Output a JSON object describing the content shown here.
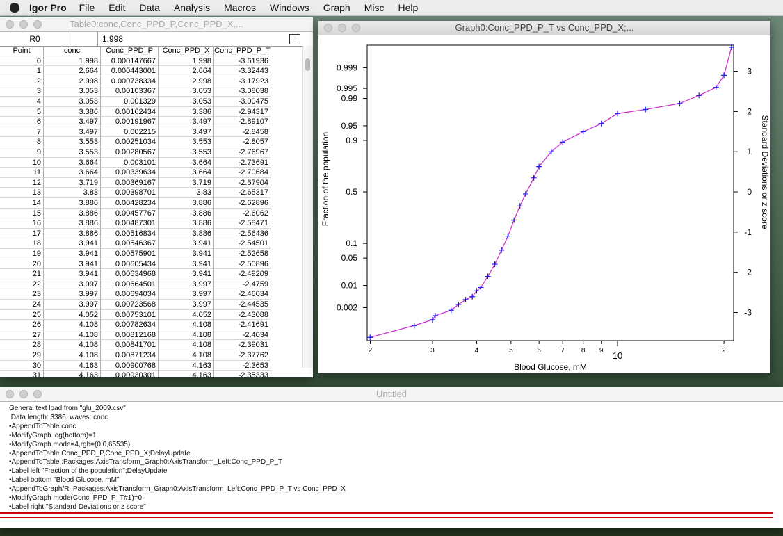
{
  "menubar": {
    "app": "Igor Pro",
    "items": [
      "File",
      "Edit",
      "Data",
      "Analysis",
      "Macros",
      "Windows",
      "Graph",
      "Misc",
      "Help"
    ]
  },
  "table_window": {
    "title": "Table0:conc,Conc_PPD_P,Conc_PPD_X,...",
    "cell_label": "R0",
    "cell_value": "1.998",
    "columns": [
      "Point",
      "conc",
      "Conc_PPD_P",
      "Conc_PPD_X",
      "Conc_PPD_P_T"
    ],
    "rows": [
      [
        "0",
        "1.998",
        "0.000147667",
        "1.998",
        "-3.61936"
      ],
      [
        "1",
        "2.664",
        "0.000443001",
        "2.664",
        "-3.32443"
      ],
      [
        "2",
        "2.998",
        "0.000738334",
        "2.998",
        "-3.17923"
      ],
      [
        "3",
        "3.053",
        "0.00103367",
        "3.053",
        "-3.08038"
      ],
      [
        "4",
        "3.053",
        "0.001329",
        "3.053",
        "-3.00475"
      ],
      [
        "5",
        "3.386",
        "0.00162434",
        "3.386",
        "-2.94317"
      ],
      [
        "6",
        "3.497",
        "0.00191967",
        "3.497",
        "-2.89107"
      ],
      [
        "7",
        "3.497",
        "0.002215",
        "3.497",
        "-2.8458"
      ],
      [
        "8",
        "3.553",
        "0.00251034",
        "3.553",
        "-2.8057"
      ],
      [
        "9",
        "3.553",
        "0.00280567",
        "3.553",
        "-2.76967"
      ],
      [
        "10",
        "3.664",
        "0.003101",
        "3.664",
        "-2.73691"
      ],
      [
        "11",
        "3.664",
        "0.00339634",
        "3.664",
        "-2.70684"
      ],
      [
        "12",
        "3.719",
        "0.00369167",
        "3.719",
        "-2.67904"
      ],
      [
        "13",
        "3.83",
        "0.00398701",
        "3.83",
        "-2.65317"
      ],
      [
        "14",
        "3.886",
        "0.00428234",
        "3.886",
        "-2.62896"
      ],
      [
        "15",
        "3.886",
        "0.00457767",
        "3.886",
        "-2.6062"
      ],
      [
        "16",
        "3.886",
        "0.00487301",
        "3.886",
        "-2.58471"
      ],
      [
        "17",
        "3.886",
        "0.00516834",
        "3.886",
        "-2.56436"
      ],
      [
        "18",
        "3.941",
        "0.00546367",
        "3.941",
        "-2.54501"
      ],
      [
        "19",
        "3.941",
        "0.00575901",
        "3.941",
        "-2.52658"
      ],
      [
        "20",
        "3.941",
        "0.00605434",
        "3.941",
        "-2.50896"
      ],
      [
        "21",
        "3.941",
        "0.00634968",
        "3.941",
        "-2.49209"
      ],
      [
        "22",
        "3.997",
        "0.00664501",
        "3.997",
        "-2.4759"
      ],
      [
        "23",
        "3.997",
        "0.00694034",
        "3.997",
        "-2.46034"
      ],
      [
        "24",
        "3.997",
        "0.00723568",
        "3.997",
        "-2.44535"
      ],
      [
        "25",
        "4.052",
        "0.00753101",
        "4.052",
        "-2.43088"
      ],
      [
        "26",
        "4.108",
        "0.00782634",
        "4.108",
        "-2.41691"
      ],
      [
        "27",
        "4.108",
        "0.00812168",
        "4.108",
        "-2.4034"
      ],
      [
        "28",
        "4.108",
        "0.00841701",
        "4.108",
        "-2.39031"
      ],
      [
        "29",
        "4.108",
        "0.00871234",
        "4.108",
        "-2.37762"
      ],
      [
        "30",
        "4.163",
        "0.00900768",
        "4.163",
        "-2.3653"
      ],
      [
        "31",
        "4.163",
        "0.00930301",
        "4.163",
        "-2.35333"
      ]
    ]
  },
  "graph_window": {
    "title": "Graph0:Conc_PPD_P_T vs Conc_PPD_X;...",
    "chart_data": {
      "type": "line",
      "x_label": "Blood Glucose, mM",
      "y_label": "Fraction of the population",
      "y2_label": "Standard Deviations or z score",
      "x_scale": "log",
      "y_scale": "probability",
      "xlim": [
        1.96,
        21.3
      ],
      "xticks": [
        2,
        3,
        4,
        5,
        6,
        7,
        8,
        9,
        10,
        {
          "value": 20,
          "label": "2"
        }
      ],
      "yticks": [
        0.002,
        0.01,
        0.05,
        0.1,
        0.5,
        0.9,
        0.95,
        0.99,
        0.995,
        0.999
      ],
      "y2lim": [
        -3.7,
        3.65
      ],
      "y2ticks": [
        -3,
        -2,
        -1,
        0,
        1,
        2,
        3
      ],
      "series": [
        {
          "axis": "y2",
          "color": "#1a1aff",
          "line_color": "#cc33cc",
          "marker": "+",
          "x": [
            1.998,
            2.664,
            2.998,
            3.053,
            3.386,
            3.553,
            3.719,
            3.886,
            3.997,
            4.108,
            4.3,
            4.5,
            4.7,
            4.9,
            5.1,
            5.3,
            5.5,
            5.8,
            6.0,
            6.5,
            7.0,
            8.0,
            9.0,
            10.0,
            12.0,
            15.0,
            17.0,
            19.0,
            20.0,
            21.0
          ],
          "values": [
            -3.619,
            -3.324,
            -3.179,
            -3.08,
            -2.943,
            -2.8,
            -2.679,
            -2.606,
            -2.46,
            -2.377,
            -2.1,
            -1.8,
            -1.45,
            -1.1,
            -0.7,
            -0.35,
            -0.05,
            0.35,
            0.63,
            1.0,
            1.24,
            1.5,
            1.7,
            1.95,
            2.05,
            2.2,
            2.4,
            2.6,
            2.9,
            3.6
          ]
        }
      ]
    }
  },
  "command_window": {
    "title": "Untitled",
    "lines": [
      "General text load from \"glu_2009.csv\"",
      " Data length: 3386, waves: conc",
      "•AppendToTable conc",
      "•ModifyGraph log(bottom)=1",
      "•ModifyGraph mode=4,rgb=(0,0,65535)",
      "•AppendToTable Conc_PPD_P,Conc_PPD_X;DelayUpdate",
      "•AppendToTable :Packages:AxisTransform_Graph0:AxisTransform_Left:Conc_PPD_P_T",
      "•Label left \"Fraction of the population\";DelayUpdate",
      "•Label bottom \"Blood Glucose, mM\"",
      "•AppendToGraph/R :Packages:AxisTransform_Graph0:AxisTransform_Left:Conc_PPD_P_T vs Conc_PPD_X",
      "•ModifyGraph mode(Conc_PPD_P_T#1)=0",
      "•Label right \"Standard Deviations or z score\""
    ]
  }
}
